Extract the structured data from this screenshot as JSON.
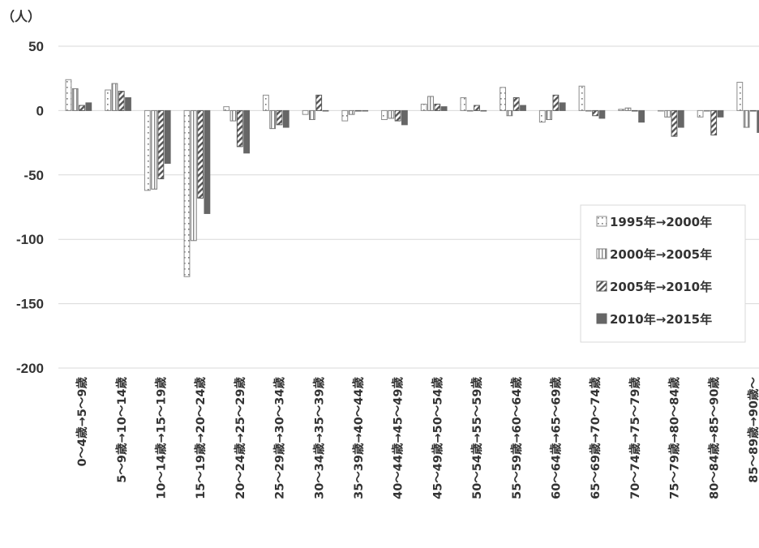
{
  "chart_data": {
    "type": "bar",
    "y_unit": "（人）",
    "ylim": [
      -200,
      50
    ],
    "yticks": [
      50,
      0,
      -50,
      -100,
      -150,
      -200
    ],
    "grid": true,
    "legend_position": "right",
    "categories": [
      "0～4歳→5～9歳",
      "5～9歳→10～14歳",
      "10～14歳→15～19歳",
      "15～19歳→20～24歳",
      "20～24歳→25～29歳",
      "25～29歳→30～34歳",
      "30～34歳→35～39歳",
      "35～39歳→40～44歳",
      "40～44歳→45～49歳",
      "45～49歳→50～54歳",
      "50～54歳→55～59歳",
      "55～59歳→60～64歳",
      "60～64歳→65～69歳",
      "65～69歳→70～74歳",
      "70～74歳→75～79歳",
      "75～79歳→80～84歳",
      "80～84歳→85～90歳",
      "85～89歳→90歳～"
    ],
    "series": [
      {
        "name": "1995年→2000年",
        "pattern": "dots",
        "values": [
          24,
          16,
          -62,
          -129,
          3,
          12,
          -3,
          -8,
          -7,
          5,
          10,
          18,
          -9,
          19,
          1,
          0,
          -5,
          22
        ]
      },
      {
        "name": "2000年→2005年",
        "pattern": "vlines",
        "values": [
          17,
          21,
          -61,
          -101,
          -8,
          -14,
          -7,
          -3,
          -6,
          11,
          0,
          -4,
          -7,
          0,
          2,
          -5,
          0,
          -13
        ]
      },
      {
        "name": "2005年→2010年",
        "pattern": "diag",
        "values": [
          4,
          15,
          -53,
          -68,
          -28,
          -11,
          12,
          0,
          -8,
          5,
          4,
          10,
          12,
          -4,
          0,
          -20,
          -19,
          0
        ]
      },
      {
        "name": "2010年→2015年",
        "pattern": "solid",
        "values": [
          6,
          10,
          -41,
          -80,
          -33,
          -13,
          0,
          0,
          -11,
          3,
          0,
          4,
          6,
          -6,
          -9,
          -13,
          -5,
          -17
        ]
      }
    ]
  }
}
